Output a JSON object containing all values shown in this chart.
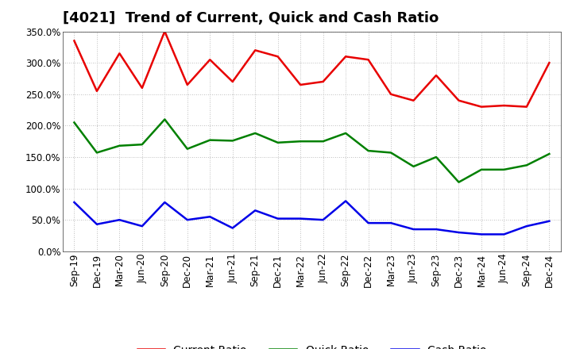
{
  "title": "[4021]  Trend of Current, Quick and Cash Ratio",
  "x_labels": [
    "Sep-19",
    "Dec-19",
    "Mar-20",
    "Jun-20",
    "Sep-20",
    "Dec-20",
    "Mar-21",
    "Jun-21",
    "Sep-21",
    "Dec-21",
    "Mar-22",
    "Jun-22",
    "Sep-22",
    "Dec-22",
    "Mar-23",
    "Jun-23",
    "Sep-23",
    "Dec-23",
    "Mar-24",
    "Jun-24",
    "Sep-24",
    "Dec-24"
  ],
  "current_ratio": [
    335,
    255,
    315,
    260,
    350,
    265,
    305,
    270,
    320,
    310,
    265,
    270,
    310,
    305,
    250,
    240,
    280,
    240,
    230,
    232,
    230,
    300
  ],
  "quick_ratio": [
    205,
    157,
    168,
    170,
    210,
    163,
    177,
    176,
    188,
    173,
    175,
    175,
    188,
    160,
    157,
    135,
    150,
    110,
    130,
    130,
    137,
    155
  ],
  "cash_ratio": [
    78,
    43,
    50,
    40,
    78,
    50,
    55,
    37,
    65,
    52,
    52,
    50,
    80,
    45,
    45,
    35,
    35,
    30,
    27,
    27,
    40,
    48
  ],
  "current_color": "#e80000",
  "quick_color": "#008000",
  "cash_color": "#0000e8",
  "ylim": [
    0,
    350
  ],
  "yticks": [
    0,
    50,
    100,
    150,
    200,
    250,
    300,
    350
  ],
  "background_color": "#ffffff",
  "plot_bg_color": "#ffffff",
  "grid_color": "#aaaaaa",
  "legend_labels": [
    "Current Ratio",
    "Quick Ratio",
    "Cash Ratio"
  ],
  "title_fontsize": 13,
  "tick_fontsize": 8.5,
  "legend_fontsize": 10,
  "line_width": 1.8
}
